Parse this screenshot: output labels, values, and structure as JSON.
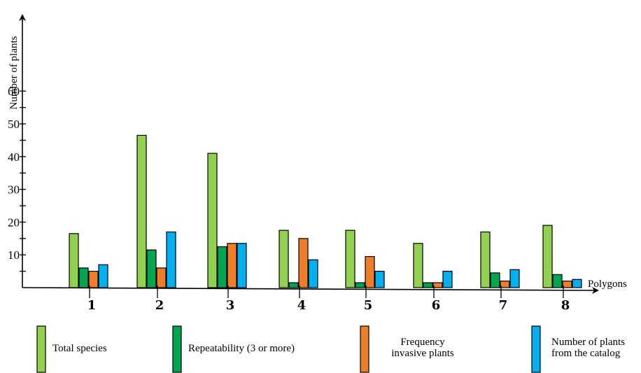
{
  "chart_data": {
    "type": "bar",
    "title": "",
    "ylabel": "Number of plants",
    "xlabel": "Polygons",
    "ylim": [
      0,
      60
    ],
    "yticks": [
      10,
      20,
      30,
      40,
      50,
      60
    ],
    "categories": [
      "1",
      "2",
      "3",
      "4",
      "5",
      "6",
      "7",
      "8"
    ],
    "series": [
      {
        "name": "Total species",
        "color": "#92d050",
        "values": [
          16.5,
          46.5,
          41,
          17.5,
          17.5,
          13.5,
          17,
          19
        ]
      },
      {
        "name": "Repeatability (3 or more)",
        "color": "#00a550",
        "values": [
          6,
          11.5,
          12.5,
          1.5,
          1.5,
          1.5,
          4.5,
          4
        ]
      },
      {
        "name": "Frequency invasive plants",
        "color": "#f07d2a",
        "values": [
          5,
          6,
          13.5,
          15,
          9.5,
          1.5,
          2,
          2
        ]
      },
      {
        "name": "Number of plants from the catalog",
        "color": "#00b0f0",
        "values": [
          7,
          17,
          13.5,
          8.5,
          5,
          5,
          5.5,
          2.5
        ]
      }
    ],
    "legend": {
      "placement": "bottom",
      "entries": [
        {
          "lines": [
            "Total species"
          ]
        },
        {
          "lines": [
            "Repeatability (3 or more)"
          ]
        },
        {
          "lines": [
            "Frequency",
            "invasive plants"
          ]
        },
        {
          "lines": [
            "Number of plants",
            "from the catalog"
          ]
        }
      ]
    }
  }
}
